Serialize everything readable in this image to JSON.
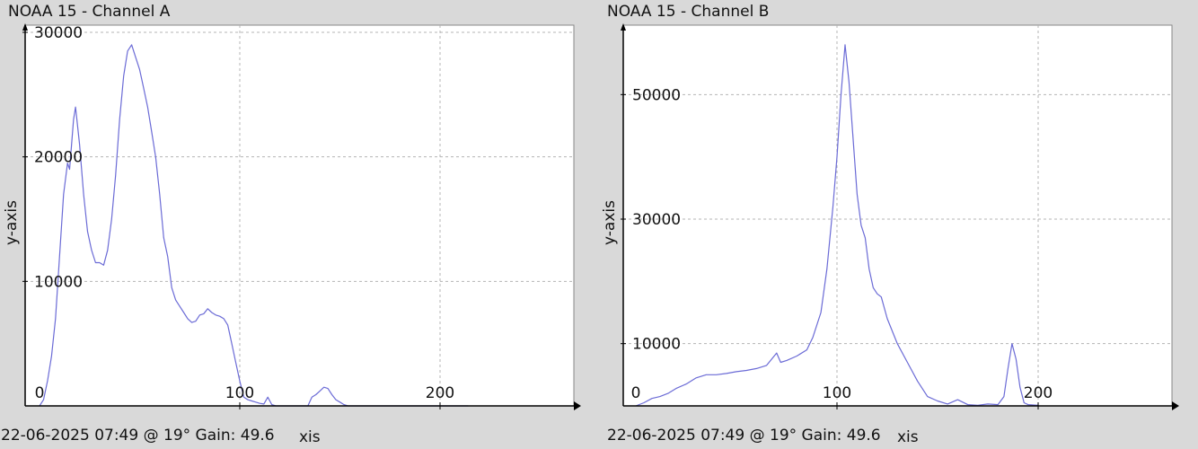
{
  "colors": {
    "background": "#d9d9d9",
    "plot_area": "#ffffff",
    "series": "#6b6bd6",
    "grid": "#b4b4b4",
    "axis": "#000000"
  },
  "panels": [
    {
      "title": "NOAA 15 - Channel A",
      "footer": "22-06-2025 07:49 @ 19° Gain: 49.6",
      "footer_overlay": "xis"
    },
    {
      "title": "NOAA 15 - Channel B",
      "footer": "22-06-2025 07:49 @ 19° Gain: 49.6",
      "footer_overlay": "xis"
    }
  ],
  "chart_data": [
    {
      "type": "line",
      "title": "NOAA 15 - Channel A",
      "xlabel": "",
      "ylabel": "y-axis",
      "xlim": [
        0,
        272
      ],
      "ylim": [
        0,
        30000
      ],
      "xticks": [
        0,
        100,
        200
      ],
      "yticks": [
        10000,
        20000,
        30000
      ],
      "grid": true,
      "series": [
        {
          "x": [
            0,
            2,
            4,
            6,
            8,
            10,
            12,
            14,
            15,
            16,
            17,
            18,
            20,
            22,
            24,
            26,
            28,
            30,
            32,
            34,
            36,
            38,
            40,
            42,
            44,
            46,
            48,
            50,
            52,
            54,
            56,
            58,
            60,
            62,
            64,
            66,
            68,
            70,
            72,
            74,
            76,
            78,
            80,
            82,
            84,
            86,
            88,
            90,
            92,
            94,
            96,
            98,
            100,
            102,
            104,
            106,
            108,
            110,
            112,
            114,
            116,
            118,
            120,
            122,
            124,
            126,
            128,
            130,
            132,
            134,
            136,
            138,
            140,
            142,
            144,
            146,
            148,
            150,
            152,
            154,
            156,
            158,
            160,
            162,
            164,
            166,
            168,
            170,
            172,
            174,
            176,
            178,
            180,
            182,
            184,
            186,
            188,
            190,
            192,
            194,
            196,
            198,
            200,
            202,
            204,
            206,
            208,
            210,
            212,
            214
          ],
          "y": [
            0,
            500,
            2000,
            4000,
            7000,
            12000,
            17000,
            19500,
            19000,
            21000,
            23000,
            24000,
            21000,
            17000,
            14000,
            12500,
            11500,
            11500,
            11300,
            12500,
            15000,
            18500,
            23000,
            26500,
            28500,
            29000,
            28000,
            27000,
            25500,
            24000,
            22000,
            20000,
            17000,
            13500,
            12000,
            9500,
            8500,
            8000,
            7500,
            7000,
            6700,
            6800,
            7300,
            7400,
            7800,
            7500,
            7300,
            7200,
            7000,
            6500,
            5000,
            3500,
            2000,
            700,
            500,
            400,
            300,
            200,
            150,
            700,
            100,
            0,
            0,
            0,
            0,
            0,
            0,
            0,
            0,
            0,
            700,
            900,
            1200,
            1500,
            1400,
            900,
            500,
            300,
            100,
            0,
            0,
            0,
            0,
            0,
            0,
            0,
            0,
            0,
            0,
            0,
            0,
            0,
            0,
            0,
            0,
            0,
            0,
            0,
            0,
            0,
            0,
            0,
            0,
            0,
            0,
            0,
            0,
            0,
            0,
            0
          ]
        }
      ]
    },
    {
      "type": "line",
      "title": "NOAA 15 - Channel B",
      "xlabel": "",
      "ylabel": "y-axis",
      "xlim": [
        0,
        272
      ],
      "ylim": [
        0,
        60000
      ],
      "xticks": [
        0,
        100,
        200
      ],
      "yticks": [
        10000,
        30000,
        50000
      ],
      "grid": true,
      "series": [
        {
          "x": [
            0,
            4,
            8,
            12,
            16,
            20,
            25,
            30,
            35,
            40,
            45,
            50,
            55,
            60,
            65,
            70,
            72,
            75,
            80,
            85,
            88,
            92,
            95,
            98,
            100,
            102,
            104,
            106,
            108,
            110,
            112,
            114,
            116,
            118,
            120,
            122,
            125,
            130,
            135,
            140,
            145,
            150,
            155,
            160,
            165,
            170,
            175,
            180,
            183,
            185,
            187,
            189,
            191,
            193,
            195,
            200
          ],
          "y": [
            0,
            500,
            1200,
            1500,
            2000,
            2800,
            3500,
            4500,
            5000,
            5000,
            5200,
            5500,
            5700,
            6000,
            6500,
            8500,
            7000,
            7300,
            8000,
            9000,
            11000,
            15000,
            22000,
            32000,
            40000,
            50000,
            58000,
            52000,
            43000,
            34000,
            29000,
            27000,
            22000,
            19000,
            18000,
            17500,
            14000,
            10000,
            7000,
            4000,
            1500,
            800,
            300,
            1000,
            200,
            100,
            300,
            200,
            1500,
            6000,
            10000,
            7500,
            3000,
            500,
            200,
            100
          ]
        }
      ]
    }
  ]
}
